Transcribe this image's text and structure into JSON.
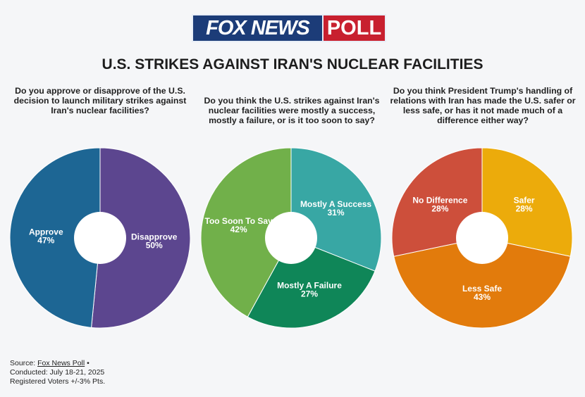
{
  "logo": {
    "left": "FOX NEWS",
    "right": "POLL"
  },
  "title": "U.S. STRIKES AGAINST IRAN'S NUCLEAR FACILITIES",
  "colors": {
    "approve": "#1d6694",
    "disapprove": "#5c468f",
    "mostly_success": "#38a7a4",
    "mostly_failure": "#0f8658",
    "too_soon": "#71b04a",
    "safer": "#ecab0b",
    "less_safe": "#e27b0c",
    "no_difference": "#cd4f3b",
    "logo_blue": "#1c3c78",
    "logo_red": "#c8202f"
  },
  "chart_data": [
    {
      "type": "pie",
      "question": "Do you approve or disapprove of the U.S. decision to launch military strikes against Iran's nuclear facilities?",
      "slices": [
        {
          "label": "Disapprove",
          "value": 50,
          "value_label": "50%",
          "color": "#5c468f"
        },
        {
          "label": "Approve",
          "value": 47,
          "value_label": "47%",
          "color": "#1d6694"
        }
      ]
    },
    {
      "type": "pie",
      "question": "Do you think the U.S. strikes against Iran's nuclear facilities were mostly a success, mostly a failure, or is it too soon to say?",
      "slices": [
        {
          "label": "Mostly A Success",
          "value": 31,
          "value_label": "31%",
          "color": "#38a7a4"
        },
        {
          "label": "Mostly A Failure",
          "value": 27,
          "value_label": "27%",
          "color": "#0f8658"
        },
        {
          "label": "Too Soon To Say",
          "value": 42,
          "value_label": "42%",
          "color": "#71b04a"
        }
      ]
    },
    {
      "type": "pie",
      "question": "Do you think President Trump's handling of relations with Iran has made the U.S. safer or less safe, or has it not made much of a difference either way?",
      "slices": [
        {
          "label": "Safer",
          "value": 28,
          "value_label": "28%",
          "color": "#ecab0b"
        },
        {
          "label": "Less Safe",
          "value": 43,
          "value_label": "43%",
          "color": "#e27b0c"
        },
        {
          "label": "No Difference",
          "value": 28,
          "value_label": "28%",
          "color": "#cd4f3b"
        }
      ]
    }
  ],
  "footer": {
    "source_prefix": "Source: ",
    "source_link": "Fox News Poll",
    "source_suffix": " •",
    "conducted": "Conducted: July 18-21, 2025",
    "voters": "Registered Voters +/-3% Pts."
  }
}
